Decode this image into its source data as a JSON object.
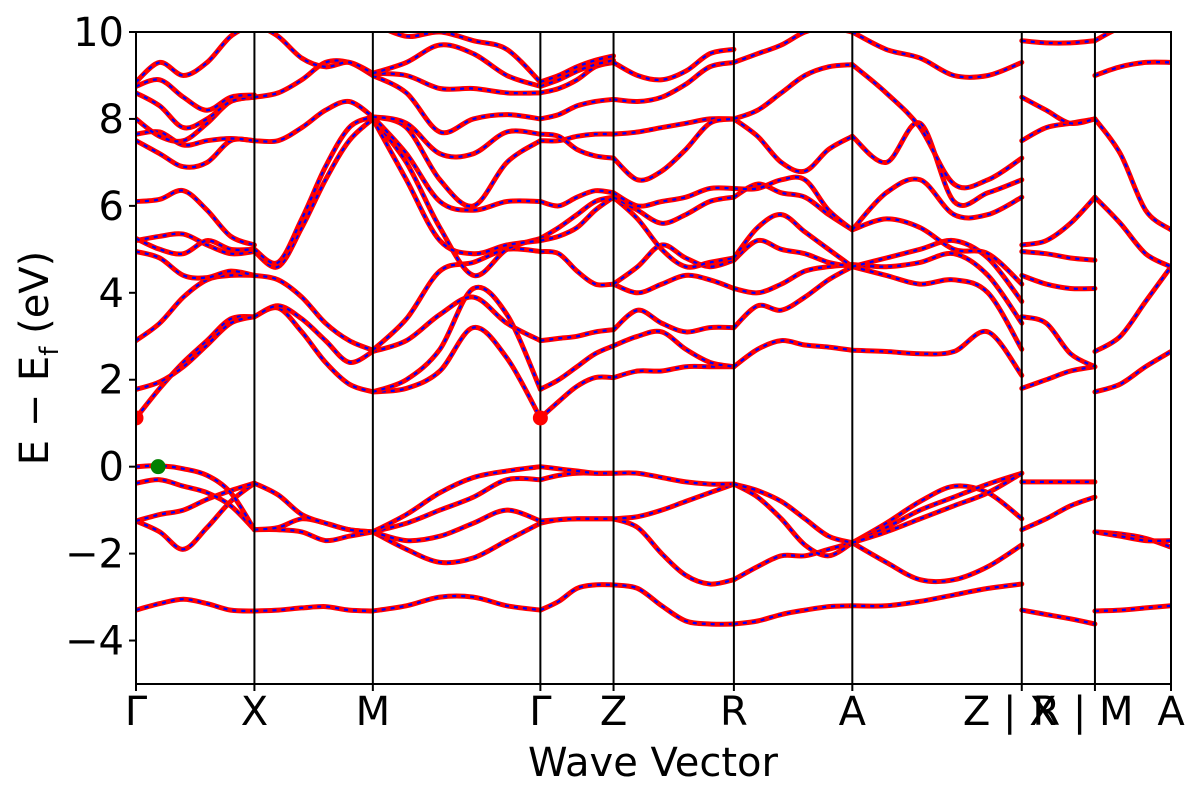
{
  "chart_data": {
    "type": "line",
    "title": "",
    "xlabel": "Wave Vector",
    "ylabel": {
      "main": "E  −  E",
      "sub": "f",
      "unit": " (eV)"
    },
    "ylim": [
      -5,
      10
    ],
    "yticks": [
      {
        "value": -4,
        "label": "−4"
      },
      {
        "value": -2,
        "label": "−2"
      },
      {
        "value": 0,
        "label": "0"
      },
      {
        "value": 2,
        "label": "2"
      },
      {
        "value": 4,
        "label": "4"
      },
      {
        "value": 6,
        "label": "6"
      },
      {
        "value": 8,
        "label": "8"
      },
      {
        "value": 10,
        "label": "10"
      }
    ],
    "xlim": [
      0,
      10.75
    ],
    "kpoints": [
      {
        "x": 0.0,
        "label": "Γ"
      },
      {
        "x": 1.23,
        "label": "X"
      },
      {
        "x": 2.46,
        "label": "M"
      },
      {
        "x": 4.2,
        "label": "Γ"
      },
      {
        "x": 4.96,
        "label": "Z"
      },
      {
        "x": 6.21,
        "label": "R"
      },
      {
        "x": 7.44,
        "label": "A"
      },
      {
        "x": 9.2,
        "label": "Z | X"
      },
      {
        "x": 9.96,
        "label": "R | M"
      },
      {
        "x": 10.75,
        "label": "A"
      }
    ],
    "grid": false,
    "legend": "none",
    "colors": {
      "spin_up": "#ff0000",
      "spin_down": "#0000ff",
      "vbm": "#008000",
      "cbm": "#ff0000",
      "axis": "#000000"
    },
    "markers": [
      {
        "name": "VBM",
        "x": 0.23,
        "y": 0.0,
        "color": "#008000"
      },
      {
        "name": "CBM",
        "x": 0.0,
        "y": 1.12,
        "color": "#ff0000"
      },
      {
        "name": "CBM",
        "x": 4.2,
        "y": 1.12,
        "color": "#ff0000"
      }
    ],
    "segments": [
      {
        "x0": 0.0,
        "x1": 1.23,
        "bands": [
          [
            -3.3,
            -3.15,
            -3.05,
            -3.15,
            -3.3,
            -3.32
          ],
          [
            -1.25,
            -1.5,
            -1.9,
            -1.4,
            -0.8,
            -0.38
          ],
          [
            -1.25,
            -1.1,
            -1.0,
            -0.75,
            -0.55,
            -0.38
          ],
          [
            -0.38,
            -0.3,
            -0.45,
            -0.6,
            -0.9,
            -1.45
          ],
          [
            0.0,
            0.02,
            -0.05,
            -0.2,
            -0.6,
            -1.45
          ],
          [
            1.12,
            1.8,
            2.4,
            2.9,
            3.4,
            3.45
          ],
          [
            1.78,
            1.95,
            2.3,
            2.8,
            3.3,
            3.45
          ],
          [
            2.9,
            3.3,
            3.9,
            4.3,
            4.4,
            4.4
          ],
          [
            4.95,
            4.8,
            4.4,
            4.35,
            4.5,
            4.4
          ],
          [
            5.2,
            5.3,
            5.35,
            5.1,
            4.9,
            4.95
          ],
          [
            5.25,
            5.0,
            4.9,
            5.2,
            5.0,
            5.0
          ],
          [
            6.1,
            6.15,
            6.35,
            5.9,
            5.3,
            5.1
          ],
          [
            7.5,
            7.2,
            6.9,
            7.0,
            7.5,
            7.5
          ],
          [
            7.65,
            7.7,
            7.4,
            7.5,
            7.55,
            7.5
          ],
          [
            8.0,
            7.6,
            7.5,
            7.9,
            8.4,
            8.5
          ],
          [
            8.6,
            8.3,
            7.8,
            8.0,
            8.4,
            8.5
          ],
          [
            8.75,
            8.9,
            8.5,
            8.2,
            8.5,
            8.55
          ],
          [
            8.85,
            9.3,
            9.0,
            9.3,
            9.9,
            10.2
          ]
        ]
      },
      {
        "x0": 1.23,
        "x1": 2.46,
        "bands": [
          [
            -3.32,
            -3.3,
            -3.25,
            -3.22,
            -3.3,
            -3.32
          ],
          [
            -1.45,
            -1.45,
            -1.5,
            -1.7,
            -1.6,
            -1.5
          ],
          [
            -1.45,
            -1.4,
            -1.2,
            -1.3,
            -1.45,
            -1.5
          ],
          [
            -0.38,
            -0.65,
            -1.1,
            -1.3,
            -1.45,
            -1.5
          ],
          [
            3.45,
            3.65,
            3.1,
            2.4,
            1.9,
            1.72
          ],
          [
            3.45,
            3.7,
            3.4,
            2.9,
            2.4,
            2.65
          ],
          [
            4.4,
            4.3,
            3.9,
            3.3,
            2.9,
            2.68
          ],
          [
            4.95,
            4.6,
            5.5,
            6.6,
            7.5,
            8.0
          ],
          [
            5.0,
            4.7,
            5.7,
            6.9,
            7.8,
            8.05
          ],
          [
            7.5,
            7.5,
            7.8,
            8.2,
            8.4,
            8.05
          ],
          [
            8.5,
            8.6,
            8.9,
            9.3,
            9.3,
            9.0
          ],
          [
            10.2,
            9.9,
            9.4,
            9.2,
            9.3,
            9.05
          ]
        ]
      },
      {
        "x0": 2.46,
        "x1": 4.2,
        "bands": [
          [
            -3.32,
            -3.2,
            -3.0,
            -3.0,
            -3.2,
            -3.3
          ],
          [
            -1.5,
            -1.9,
            -2.2,
            -2.1,
            -1.7,
            -1.3
          ],
          [
            -1.5,
            -1.7,
            -1.6,
            -1.3,
            -1.0,
            -1.25
          ],
          [
            -1.5,
            -1.3,
            -1.0,
            -0.7,
            -0.3,
            -0.3
          ],
          [
            -1.5,
            -1.1,
            -0.6,
            -0.25,
            -0.1,
            0.0
          ],
          [
            1.72,
            1.8,
            2.2,
            3.2,
            2.5,
            1.12
          ],
          [
            1.72,
            2.0,
            2.7,
            4.1,
            3.5,
            1.78
          ],
          [
            2.65,
            2.9,
            3.5,
            3.9,
            3.3,
            2.9
          ],
          [
            2.68,
            3.4,
            4.5,
            4.7,
            5.0,
            4.95
          ],
          [
            8.0,
            7.0,
            5.5,
            4.4,
            5.0,
            5.25
          ],
          [
            8.0,
            6.6,
            5.2,
            4.9,
            5.1,
            5.2
          ],
          [
            8.05,
            7.2,
            6.1,
            5.9,
            6.1,
            6.1
          ],
          [
            8.05,
            7.8,
            6.6,
            6.0,
            7.0,
            7.5
          ],
          [
            8.05,
            7.9,
            7.2,
            7.2,
            7.7,
            7.65
          ],
          [
            9.0,
            8.6,
            7.7,
            8.0,
            8.1,
            8.0
          ],
          [
            9.05,
            9.0,
            8.7,
            8.7,
            8.6,
            8.6
          ],
          [
            9.05,
            9.3,
            9.7,
            9.5,
            9.0,
            8.75
          ],
          [
            10.2,
            9.9,
            10.0,
            9.8,
            9.6,
            8.85
          ]
        ]
      },
      {
        "x0": 4.2,
        "x1": 4.96,
        "bands": [
          [
            -3.3,
            -3.1,
            -2.8,
            -2.72,
            -2.72
          ],
          [
            -1.3,
            -1.22,
            -1.2,
            -1.2,
            -1.2
          ],
          [
            -1.25,
            -1.22,
            -1.2,
            -1.2,
            -1.2
          ],
          [
            -0.3,
            -0.2,
            -0.15,
            -0.15,
            -0.15
          ],
          [
            0.0,
            -0.05,
            -0.1,
            -0.15,
            -0.15
          ],
          [
            1.12,
            1.5,
            1.85,
            2.05,
            2.05
          ],
          [
            1.78,
            2.0,
            2.3,
            2.6,
            2.78
          ],
          [
            2.9,
            2.95,
            3.0,
            3.1,
            3.15
          ],
          [
            4.95,
            4.9,
            4.5,
            4.2,
            4.2
          ],
          [
            5.25,
            5.5,
            5.8,
            6.1,
            6.2
          ],
          [
            5.2,
            5.3,
            5.5,
            5.9,
            6.2
          ],
          [
            6.1,
            6.0,
            6.2,
            6.35,
            6.3
          ],
          [
            7.5,
            7.5,
            7.6,
            7.65,
            7.65
          ],
          [
            7.65,
            7.6,
            7.3,
            7.15,
            7.1
          ],
          [
            8.0,
            8.1,
            8.3,
            8.4,
            8.45
          ],
          [
            8.6,
            8.7,
            8.9,
            9.2,
            9.3
          ],
          [
            8.75,
            8.9,
            9.1,
            9.25,
            9.35
          ],
          [
            8.85,
            9.0,
            9.2,
            9.35,
            9.45
          ]
        ]
      },
      {
        "x0": 4.96,
        "x1": 6.21,
        "bands": [
          [
            -2.72,
            -2.8,
            -3.2,
            -3.55,
            -3.62,
            -3.62
          ],
          [
            -1.2,
            -1.4,
            -2.0,
            -2.5,
            -2.7,
            -2.6
          ],
          [
            -1.2,
            -1.15,
            -1.0,
            -0.8,
            -0.6,
            -0.4
          ],
          [
            -0.15,
            -0.15,
            -0.25,
            -0.35,
            -0.4,
            -0.4
          ],
          [
            2.05,
            2.2,
            2.2,
            2.3,
            2.3,
            2.3
          ],
          [
            2.78,
            3.0,
            3.1,
            2.7,
            2.4,
            2.3
          ],
          [
            3.15,
            3.6,
            3.3,
            3.1,
            3.2,
            3.2
          ],
          [
            4.2,
            4.0,
            4.2,
            4.4,
            4.3,
            4.1
          ],
          [
            4.2,
            4.6,
            5.1,
            4.8,
            4.6,
            4.75
          ],
          [
            6.2,
            5.7,
            5.0,
            4.6,
            4.7,
            4.8
          ],
          [
            6.2,
            5.9,
            5.6,
            5.8,
            6.1,
            6.2
          ],
          [
            6.3,
            6.0,
            6.1,
            6.2,
            6.4,
            6.4
          ],
          [
            7.65,
            7.7,
            7.8,
            7.9,
            8.0,
            8.0
          ],
          [
            7.1,
            6.6,
            6.8,
            7.3,
            7.9,
            8.0
          ],
          [
            8.45,
            8.4,
            8.5,
            8.8,
            9.2,
            9.3
          ],
          [
            9.3,
            9.0,
            8.9,
            9.1,
            9.5,
            9.6
          ]
        ]
      },
      {
        "x0": 6.21,
        "x1": 7.44,
        "bands": [
          [
            -3.62,
            -3.55,
            -3.4,
            -3.3,
            -3.22,
            -3.2
          ],
          [
            -2.6,
            -2.3,
            -2.05,
            -2.05,
            -1.9,
            -1.75
          ],
          [
            -0.4,
            -0.7,
            -1.2,
            -1.8,
            -2.05,
            -1.75
          ],
          [
            -0.4,
            -0.55,
            -0.8,
            -1.2,
            -1.6,
            -1.75
          ],
          [
            2.3,
            2.7,
            2.9,
            2.8,
            2.75,
            2.68
          ],
          [
            3.2,
            3.7,
            3.6,
            3.9,
            4.3,
            4.6
          ],
          [
            4.1,
            4.0,
            4.2,
            4.5,
            4.6,
            4.65
          ],
          [
            4.75,
            5.2,
            5.0,
            4.9,
            4.7,
            4.6
          ],
          [
            4.8,
            5.5,
            5.8,
            5.4,
            5.0,
            4.6
          ],
          [
            6.2,
            6.5,
            6.3,
            6.2,
            5.8,
            5.45
          ],
          [
            6.4,
            6.4,
            6.6,
            6.6,
            5.9,
            5.45
          ],
          [
            8.0,
            7.6,
            7.0,
            6.8,
            7.3,
            7.6
          ],
          [
            8.0,
            8.2,
            8.6,
            9.0,
            9.2,
            9.25
          ],
          [
            9.3,
            9.5,
            9.7,
            10.0,
            10.1,
            10.0
          ]
        ]
      },
      {
        "x0": 7.44,
        "x1": 9.2,
        "bands": [
          [
            -3.2,
            -3.2,
            -3.1,
            -2.95,
            -2.8,
            -2.7
          ],
          [
            -1.75,
            -2.2,
            -2.6,
            -2.6,
            -2.3,
            -1.8
          ],
          [
            -1.75,
            -1.3,
            -0.8,
            -0.45,
            -0.6,
            -1.2
          ],
          [
            -1.75,
            -1.4,
            -1.0,
            -0.7,
            -0.4,
            -0.15
          ],
          [
            -1.75,
            -1.5,
            -1.2,
            -0.9,
            -0.6,
            -0.15
          ],
          [
            2.68,
            2.65,
            2.6,
            2.65,
            3.1,
            2.1
          ],
          [
            4.6,
            4.4,
            4.2,
            4.3,
            4.0,
            2.7
          ],
          [
            4.65,
            4.6,
            4.7,
            4.9,
            4.4,
            3.3
          ],
          [
            4.6,
            4.8,
            5.0,
            5.2,
            4.8,
            3.8
          ],
          [
            5.45,
            5.7,
            5.5,
            5.0,
            4.9,
            4.2
          ],
          [
            5.45,
            6.3,
            6.6,
            5.8,
            5.8,
            6.2
          ],
          [
            7.6,
            7.0,
            7.9,
            6.1,
            6.3,
            6.6
          ],
          [
            9.25,
            8.6,
            7.8,
            6.5,
            6.6,
            7.1
          ],
          [
            10.0,
            9.6,
            9.4,
            9.0,
            9.0,
            9.3
          ]
        ]
      },
      {
        "x0": 9.2,
        "x1": 9.96,
        "bands": [
          [
            -3.3,
            -3.4,
            -3.5,
            -3.62
          ],
          [
            -1.45,
            -1.2,
            -0.9,
            -0.7
          ],
          [
            -0.35,
            -0.35,
            -0.35,
            -0.35
          ],
          [
            1.8,
            2.0,
            2.2,
            2.3
          ],
          [
            3.45,
            3.3,
            2.6,
            2.3
          ],
          [
            4.4,
            4.2,
            4.1,
            4.1
          ],
          [
            4.95,
            4.9,
            4.8,
            4.75
          ],
          [
            5.1,
            5.2,
            5.6,
            6.2
          ],
          [
            7.5,
            7.8,
            7.9,
            8.0
          ],
          [
            8.5,
            8.2,
            7.9,
            8.0
          ],
          [
            9.8,
            9.75,
            9.75,
            9.8
          ]
        ]
      },
      {
        "x0": 9.96,
        "x1": 10.75,
        "bands": [
          [
            -3.32,
            -3.3,
            -3.25,
            -3.2
          ],
          [
            -1.5,
            -1.55,
            -1.65,
            -1.85
          ],
          [
            -1.5,
            -1.6,
            -1.7,
            -1.7
          ],
          [
            1.72,
            1.9,
            2.3,
            2.65
          ],
          [
            2.65,
            3.0,
            3.8,
            4.6
          ],
          [
            6.2,
            5.6,
            4.9,
            4.6
          ],
          [
            8.0,
            7.2,
            5.9,
            5.45
          ],
          [
            9.0,
            9.2,
            9.3,
            9.3
          ],
          [
            9.8,
            10.1,
            10.2,
            10.2
          ]
        ]
      }
    ]
  }
}
